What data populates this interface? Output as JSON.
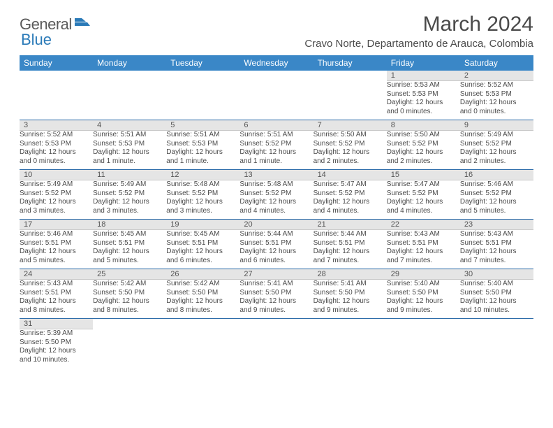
{
  "logo": {
    "general": "General",
    "blue": "Blue"
  },
  "title": "March 2024",
  "subtitle": "Cravo Norte, Departamento de Arauca, Colombia",
  "weekdays": [
    "Sunday",
    "Monday",
    "Tuesday",
    "Wednesday",
    "Thursday",
    "Friday",
    "Saturday"
  ],
  "colors": {
    "header_bg": "#3a87c7",
    "header_text": "#ffffff",
    "daynum_bg": "#e5e5e5",
    "row_divider": "#2a6aa8",
    "text": "#4a4a4a"
  },
  "weeks": [
    [
      null,
      null,
      null,
      null,
      null,
      {
        "n": "1",
        "sr": "Sunrise: 5:53 AM",
        "ss": "Sunset: 5:53 PM",
        "d1": "Daylight: 12 hours",
        "d2": "and 0 minutes."
      },
      {
        "n": "2",
        "sr": "Sunrise: 5:52 AM",
        "ss": "Sunset: 5:53 PM",
        "d1": "Daylight: 12 hours",
        "d2": "and 0 minutes."
      }
    ],
    [
      {
        "n": "3",
        "sr": "Sunrise: 5:52 AM",
        "ss": "Sunset: 5:53 PM",
        "d1": "Daylight: 12 hours",
        "d2": "and 0 minutes."
      },
      {
        "n": "4",
        "sr": "Sunrise: 5:51 AM",
        "ss": "Sunset: 5:53 PM",
        "d1": "Daylight: 12 hours",
        "d2": "and 1 minute."
      },
      {
        "n": "5",
        "sr": "Sunrise: 5:51 AM",
        "ss": "Sunset: 5:53 PM",
        "d1": "Daylight: 12 hours",
        "d2": "and 1 minute."
      },
      {
        "n": "6",
        "sr": "Sunrise: 5:51 AM",
        "ss": "Sunset: 5:52 PM",
        "d1": "Daylight: 12 hours",
        "d2": "and 1 minute."
      },
      {
        "n": "7",
        "sr": "Sunrise: 5:50 AM",
        "ss": "Sunset: 5:52 PM",
        "d1": "Daylight: 12 hours",
        "d2": "and 2 minutes."
      },
      {
        "n": "8",
        "sr": "Sunrise: 5:50 AM",
        "ss": "Sunset: 5:52 PM",
        "d1": "Daylight: 12 hours",
        "d2": "and 2 minutes."
      },
      {
        "n": "9",
        "sr": "Sunrise: 5:49 AM",
        "ss": "Sunset: 5:52 PM",
        "d1": "Daylight: 12 hours",
        "d2": "and 2 minutes."
      }
    ],
    [
      {
        "n": "10",
        "sr": "Sunrise: 5:49 AM",
        "ss": "Sunset: 5:52 PM",
        "d1": "Daylight: 12 hours",
        "d2": "and 3 minutes."
      },
      {
        "n": "11",
        "sr": "Sunrise: 5:49 AM",
        "ss": "Sunset: 5:52 PM",
        "d1": "Daylight: 12 hours",
        "d2": "and 3 minutes."
      },
      {
        "n": "12",
        "sr": "Sunrise: 5:48 AM",
        "ss": "Sunset: 5:52 PM",
        "d1": "Daylight: 12 hours",
        "d2": "and 3 minutes."
      },
      {
        "n": "13",
        "sr": "Sunrise: 5:48 AM",
        "ss": "Sunset: 5:52 PM",
        "d1": "Daylight: 12 hours",
        "d2": "and 4 minutes."
      },
      {
        "n": "14",
        "sr": "Sunrise: 5:47 AM",
        "ss": "Sunset: 5:52 PM",
        "d1": "Daylight: 12 hours",
        "d2": "and 4 minutes."
      },
      {
        "n": "15",
        "sr": "Sunrise: 5:47 AM",
        "ss": "Sunset: 5:52 PM",
        "d1": "Daylight: 12 hours",
        "d2": "and 4 minutes."
      },
      {
        "n": "16",
        "sr": "Sunrise: 5:46 AM",
        "ss": "Sunset: 5:52 PM",
        "d1": "Daylight: 12 hours",
        "d2": "and 5 minutes."
      }
    ],
    [
      {
        "n": "17",
        "sr": "Sunrise: 5:46 AM",
        "ss": "Sunset: 5:51 PM",
        "d1": "Daylight: 12 hours",
        "d2": "and 5 minutes."
      },
      {
        "n": "18",
        "sr": "Sunrise: 5:45 AM",
        "ss": "Sunset: 5:51 PM",
        "d1": "Daylight: 12 hours",
        "d2": "and 5 minutes."
      },
      {
        "n": "19",
        "sr": "Sunrise: 5:45 AM",
        "ss": "Sunset: 5:51 PM",
        "d1": "Daylight: 12 hours",
        "d2": "and 6 minutes."
      },
      {
        "n": "20",
        "sr": "Sunrise: 5:44 AM",
        "ss": "Sunset: 5:51 PM",
        "d1": "Daylight: 12 hours",
        "d2": "and 6 minutes."
      },
      {
        "n": "21",
        "sr": "Sunrise: 5:44 AM",
        "ss": "Sunset: 5:51 PM",
        "d1": "Daylight: 12 hours",
        "d2": "and 7 minutes."
      },
      {
        "n": "22",
        "sr": "Sunrise: 5:43 AM",
        "ss": "Sunset: 5:51 PM",
        "d1": "Daylight: 12 hours",
        "d2": "and 7 minutes."
      },
      {
        "n": "23",
        "sr": "Sunrise: 5:43 AM",
        "ss": "Sunset: 5:51 PM",
        "d1": "Daylight: 12 hours",
        "d2": "and 7 minutes."
      }
    ],
    [
      {
        "n": "24",
        "sr": "Sunrise: 5:43 AM",
        "ss": "Sunset: 5:51 PM",
        "d1": "Daylight: 12 hours",
        "d2": "and 8 minutes."
      },
      {
        "n": "25",
        "sr": "Sunrise: 5:42 AM",
        "ss": "Sunset: 5:50 PM",
        "d1": "Daylight: 12 hours",
        "d2": "and 8 minutes."
      },
      {
        "n": "26",
        "sr": "Sunrise: 5:42 AM",
        "ss": "Sunset: 5:50 PM",
        "d1": "Daylight: 12 hours",
        "d2": "and 8 minutes."
      },
      {
        "n": "27",
        "sr": "Sunrise: 5:41 AM",
        "ss": "Sunset: 5:50 PM",
        "d1": "Daylight: 12 hours",
        "d2": "and 9 minutes."
      },
      {
        "n": "28",
        "sr": "Sunrise: 5:41 AM",
        "ss": "Sunset: 5:50 PM",
        "d1": "Daylight: 12 hours",
        "d2": "and 9 minutes."
      },
      {
        "n": "29",
        "sr": "Sunrise: 5:40 AM",
        "ss": "Sunset: 5:50 PM",
        "d1": "Daylight: 12 hours",
        "d2": "and 9 minutes."
      },
      {
        "n": "30",
        "sr": "Sunrise: 5:40 AM",
        "ss": "Sunset: 5:50 PM",
        "d1": "Daylight: 12 hours",
        "d2": "and 10 minutes."
      }
    ],
    [
      {
        "n": "31",
        "sr": "Sunrise: 5:39 AM",
        "ss": "Sunset: 5:50 PM",
        "d1": "Daylight: 12 hours",
        "d2": "and 10 minutes."
      },
      null,
      null,
      null,
      null,
      null,
      null
    ]
  ]
}
